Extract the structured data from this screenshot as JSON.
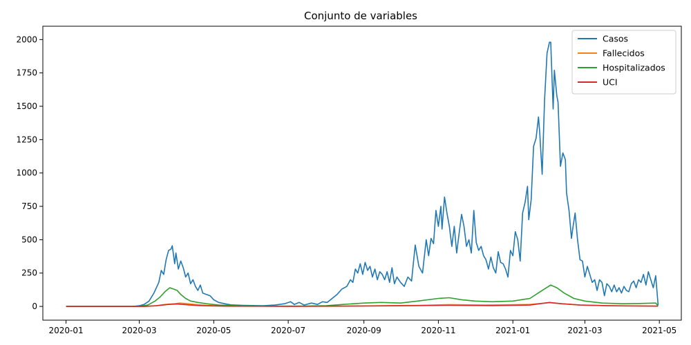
{
  "chart_data": {
    "type": "line",
    "title": "Conjunto de variables",
    "xlabel": "",
    "ylabel": "",
    "xlim": [
      "2019-12-13",
      "2021-05-19"
    ],
    "ylim": [
      -103,
      2100
    ],
    "grid": false,
    "legend_position": "top-right",
    "x_ticks": [
      "2020-01",
      "2020-03",
      "2020-05",
      "2020-07",
      "2020-09",
      "2020-11",
      "2021-01",
      "2021-03",
      "2021-05"
    ],
    "y_ticks": [
      0,
      250,
      500,
      750,
      1000,
      1250,
      1500,
      1750,
      2000
    ],
    "series": [
      {
        "name": "Casos",
        "color": "#1f77b4",
        "points": [
          [
            "2020-01-01",
            0
          ],
          [
            "2020-02-01",
            0
          ],
          [
            "2020-02-25",
            0
          ],
          [
            "2020-03-01",
            5
          ],
          [
            "2020-03-05",
            15
          ],
          [
            "2020-03-09",
            40
          ],
          [
            "2020-03-13",
            100
          ],
          [
            "2020-03-17",
            180
          ],
          [
            "2020-03-19",
            270
          ],
          [
            "2020-03-21",
            240
          ],
          [
            "2020-03-23",
            350
          ],
          [
            "2020-03-25",
            420
          ],
          [
            "2020-03-27",
            430
          ],
          [
            "2020-03-28",
            455
          ],
          [
            "2020-03-30",
            320
          ],
          [
            "2020-03-31",
            400
          ],
          [
            "2020-04-02",
            280
          ],
          [
            "2020-04-04",
            340
          ],
          [
            "2020-04-06",
            290
          ],
          [
            "2020-04-08",
            220
          ],
          [
            "2020-04-10",
            250
          ],
          [
            "2020-04-12",
            170
          ],
          [
            "2020-04-14",
            200
          ],
          [
            "2020-04-16",
            150
          ],
          [
            "2020-04-18",
            120
          ],
          [
            "2020-04-20",
            160
          ],
          [
            "2020-04-22",
            100
          ],
          [
            "2020-04-25",
            90
          ],
          [
            "2020-04-28",
            80
          ],
          [
            "2020-05-01",
            50
          ],
          [
            "2020-05-05",
            30
          ],
          [
            "2020-05-10",
            20
          ],
          [
            "2020-05-15",
            12
          ],
          [
            "2020-05-25",
            8
          ],
          [
            "2020-06-10",
            5
          ],
          [
            "2020-06-20",
            10
          ],
          [
            "2020-06-28",
            20
          ],
          [
            "2020-07-03",
            35
          ],
          [
            "2020-07-06",
            15
          ],
          [
            "2020-07-10",
            30
          ],
          [
            "2020-07-14",
            10
          ],
          [
            "2020-07-20",
            25
          ],
          [
            "2020-07-25",
            15
          ],
          [
            "2020-07-29",
            35
          ],
          [
            "2020-08-02",
            30
          ],
          [
            "2020-08-06",
            60
          ],
          [
            "2020-08-10",
            90
          ],
          [
            "2020-08-14",
            130
          ],
          [
            "2020-08-18",
            150
          ],
          [
            "2020-08-21",
            200
          ],
          [
            "2020-08-23",
            180
          ],
          [
            "2020-08-25",
            280
          ],
          [
            "2020-08-27",
            250
          ],
          [
            "2020-08-29",
            320
          ],
          [
            "2020-08-31",
            240
          ],
          [
            "2020-09-02",
            330
          ],
          [
            "2020-09-04",
            270
          ],
          [
            "2020-09-06",
            300
          ],
          [
            "2020-09-08",
            220
          ],
          [
            "2020-09-10",
            280
          ],
          [
            "2020-09-12",
            200
          ],
          [
            "2020-09-14",
            260
          ],
          [
            "2020-09-16",
            240
          ],
          [
            "2020-09-18",
            200
          ],
          [
            "2020-09-20",
            260
          ],
          [
            "2020-09-22",
            180
          ],
          [
            "2020-09-24",
            290
          ],
          [
            "2020-09-26",
            170
          ],
          [
            "2020-09-28",
            220
          ],
          [
            "2020-10-01",
            180
          ],
          [
            "2020-10-04",
            150
          ],
          [
            "2020-10-07",
            220
          ],
          [
            "2020-10-10",
            190
          ],
          [
            "2020-10-13",
            460
          ],
          [
            "2020-10-16",
            300
          ],
          [
            "2020-10-19",
            250
          ],
          [
            "2020-10-22",
            500
          ],
          [
            "2020-10-24",
            380
          ],
          [
            "2020-10-26",
            510
          ],
          [
            "2020-10-28",
            470
          ],
          [
            "2020-10-30",
            720
          ],
          [
            "2020-11-01",
            600
          ],
          [
            "2020-11-03",
            750
          ],
          [
            "2020-11-04",
            580
          ],
          [
            "2020-11-06",
            820
          ],
          [
            "2020-11-08",
            700
          ],
          [
            "2020-11-10",
            600
          ],
          [
            "2020-11-12",
            450
          ],
          [
            "2020-11-14",
            600
          ],
          [
            "2020-11-16",
            400
          ],
          [
            "2020-11-18",
            550
          ],
          [
            "2020-11-20",
            690
          ],
          [
            "2020-11-22",
            600
          ],
          [
            "2020-11-24",
            450
          ],
          [
            "2020-11-26",
            500
          ],
          [
            "2020-11-28",
            400
          ],
          [
            "2020-11-30",
            720
          ],
          [
            "2020-12-02",
            480
          ],
          [
            "2020-12-04",
            420
          ],
          [
            "2020-12-06",
            450
          ],
          [
            "2020-12-08",
            380
          ],
          [
            "2020-12-10",
            350
          ],
          [
            "2020-12-12",
            280
          ],
          [
            "2020-12-14",
            370
          ],
          [
            "2020-12-16",
            290
          ],
          [
            "2020-12-18",
            250
          ],
          [
            "2020-12-20",
            410
          ],
          [
            "2020-12-22",
            330
          ],
          [
            "2020-12-24",
            320
          ],
          [
            "2020-12-26",
            280
          ],
          [
            "2020-12-28",
            220
          ],
          [
            "2020-12-30",
            420
          ],
          [
            "2021-01-01",
            380
          ],
          [
            "2021-01-03",
            560
          ],
          [
            "2021-01-05",
            500
          ],
          [
            "2021-01-07",
            340
          ],
          [
            "2021-01-09",
            700
          ],
          [
            "2021-01-11",
            780
          ],
          [
            "2021-01-13",
            900
          ],
          [
            "2021-01-14",
            650
          ],
          [
            "2021-01-16",
            800
          ],
          [
            "2021-01-18",
            1200
          ],
          [
            "2021-01-20",
            1260
          ],
          [
            "2021-01-22",
            1420
          ],
          [
            "2021-01-23",
            1300
          ],
          [
            "2021-01-25",
            990
          ],
          [
            "2021-01-27",
            1550
          ],
          [
            "2021-01-29",
            1900
          ],
          [
            "2021-01-31",
            1980
          ],
          [
            "2021-02-01",
            1980
          ],
          [
            "2021-02-03",
            1480
          ],
          [
            "2021-02-04",
            1770
          ],
          [
            "2021-02-06",
            1580
          ],
          [
            "2021-02-07",
            1530
          ],
          [
            "2021-02-09",
            1050
          ],
          [
            "2021-02-11",
            1150
          ],
          [
            "2021-02-13",
            1100
          ],
          [
            "2021-02-14",
            850
          ],
          [
            "2021-02-16",
            720
          ],
          [
            "2021-02-18",
            510
          ],
          [
            "2021-02-19",
            580
          ],
          [
            "2021-02-21",
            700
          ],
          [
            "2021-02-23",
            500
          ],
          [
            "2021-02-25",
            350
          ],
          [
            "2021-02-27",
            340
          ],
          [
            "2021-03-01",
            220
          ],
          [
            "2021-03-03",
            300
          ],
          [
            "2021-03-05",
            240
          ],
          [
            "2021-03-07",
            180
          ],
          [
            "2021-03-09",
            200
          ],
          [
            "2021-03-11",
            120
          ],
          [
            "2021-03-13",
            200
          ],
          [
            "2021-03-15",
            180
          ],
          [
            "2021-03-17",
            80
          ],
          [
            "2021-03-19",
            170
          ],
          [
            "2021-03-21",
            150
          ],
          [
            "2021-03-23",
            110
          ],
          [
            "2021-03-25",
            160
          ],
          [
            "2021-03-27",
            110
          ],
          [
            "2021-03-29",
            140
          ],
          [
            "2021-03-31",
            100
          ],
          [
            "2021-04-02",
            150
          ],
          [
            "2021-04-04",
            120
          ],
          [
            "2021-04-06",
            110
          ],
          [
            "2021-04-08",
            170
          ],
          [
            "2021-04-10",
            190
          ],
          [
            "2021-04-12",
            140
          ],
          [
            "2021-04-14",
            200
          ],
          [
            "2021-04-16",
            180
          ],
          [
            "2021-04-18",
            240
          ],
          [
            "2021-04-20",
            160
          ],
          [
            "2021-04-22",
            260
          ],
          [
            "2021-04-24",
            200
          ],
          [
            "2021-04-26",
            140
          ],
          [
            "2021-04-28",
            230
          ],
          [
            "2021-04-30",
            10
          ]
        ]
      },
      {
        "name": "Fallecidos",
        "color": "#ff7f0e",
        "points": [
          [
            "2020-01-01",
            0
          ],
          [
            "2020-03-05",
            0
          ],
          [
            "2020-03-15",
            5
          ],
          [
            "2020-03-22",
            15
          ],
          [
            "2020-03-30",
            20
          ],
          [
            "2020-04-03",
            25
          ],
          [
            "2020-04-08",
            22
          ],
          [
            "2020-04-15",
            15
          ],
          [
            "2020-04-25",
            8
          ],
          [
            "2020-05-10",
            3
          ],
          [
            "2020-07-01",
            1
          ],
          [
            "2020-08-15",
            2
          ],
          [
            "2020-09-15",
            5
          ],
          [
            "2020-10-15",
            8
          ],
          [
            "2020-11-10",
            14
          ],
          [
            "2020-12-10",
            10
          ],
          [
            "2021-01-15",
            15
          ],
          [
            "2021-01-31",
            28
          ],
          [
            "2021-02-10",
            20
          ],
          [
            "2021-02-25",
            10
          ],
          [
            "2021-03-20",
            5
          ],
          [
            "2021-04-30",
            3
          ]
        ]
      },
      {
        "name": "Hospitalizados",
        "color": "#2ca02c",
        "points": [
          [
            "2020-01-01",
            0
          ],
          [
            "2020-03-01",
            0
          ],
          [
            "2020-03-08",
            10
          ],
          [
            "2020-03-14",
            40
          ],
          [
            "2020-03-18",
            70
          ],
          [
            "2020-03-22",
            110
          ],
          [
            "2020-03-26",
            140
          ],
          [
            "2020-03-29",
            130
          ],
          [
            "2020-04-01",
            120
          ],
          [
            "2020-04-04",
            90
          ],
          [
            "2020-04-08",
            60
          ],
          [
            "2020-04-12",
            40
          ],
          [
            "2020-04-18",
            30
          ],
          [
            "2020-04-25",
            20
          ],
          [
            "2020-05-05",
            10
          ],
          [
            "2020-05-20",
            5
          ],
          [
            "2020-06-15",
            2
          ],
          [
            "2020-07-15",
            3
          ],
          [
            "2020-08-01",
            5
          ],
          [
            "2020-08-15",
            15
          ],
          [
            "2020-09-01",
            25
          ],
          [
            "2020-09-15",
            30
          ],
          [
            "2020-10-01",
            25
          ],
          [
            "2020-10-15",
            40
          ],
          [
            "2020-11-01",
            60
          ],
          [
            "2020-11-10",
            65
          ],
          [
            "2020-11-20",
            50
          ],
          [
            "2020-12-01",
            40
          ],
          [
            "2020-12-15",
            35
          ],
          [
            "2021-01-01",
            40
          ],
          [
            "2021-01-15",
            60
          ],
          [
            "2021-01-25",
            120
          ],
          [
            "2021-02-01",
            160
          ],
          [
            "2021-02-06",
            140
          ],
          [
            "2021-02-12",
            100
          ],
          [
            "2021-02-20",
            60
          ],
          [
            "2021-03-01",
            40
          ],
          [
            "2021-03-15",
            25
          ],
          [
            "2021-04-01",
            20
          ],
          [
            "2021-04-15",
            22
          ],
          [
            "2021-04-28",
            25
          ],
          [
            "2021-04-30",
            5
          ]
        ]
      },
      {
        "name": "UCI",
        "color": "#d62728",
        "points": [
          [
            "2020-01-01",
            0
          ],
          [
            "2020-03-05",
            0
          ],
          [
            "2020-03-15",
            5
          ],
          [
            "2020-03-25",
            15
          ],
          [
            "2020-04-01",
            18
          ],
          [
            "2020-04-10",
            12
          ],
          [
            "2020-04-20",
            6
          ],
          [
            "2020-05-10",
            2
          ],
          [
            "2020-07-01",
            1
          ],
          [
            "2020-09-01",
            3
          ],
          [
            "2020-10-15",
            6
          ],
          [
            "2020-11-10",
            8
          ],
          [
            "2020-12-15",
            6
          ],
          [
            "2021-01-15",
            10
          ],
          [
            "2021-01-31",
            30
          ],
          [
            "2021-02-10",
            20
          ],
          [
            "2021-02-25",
            10
          ],
          [
            "2021-03-20",
            5
          ],
          [
            "2021-04-30",
            2
          ]
        ]
      }
    ]
  }
}
